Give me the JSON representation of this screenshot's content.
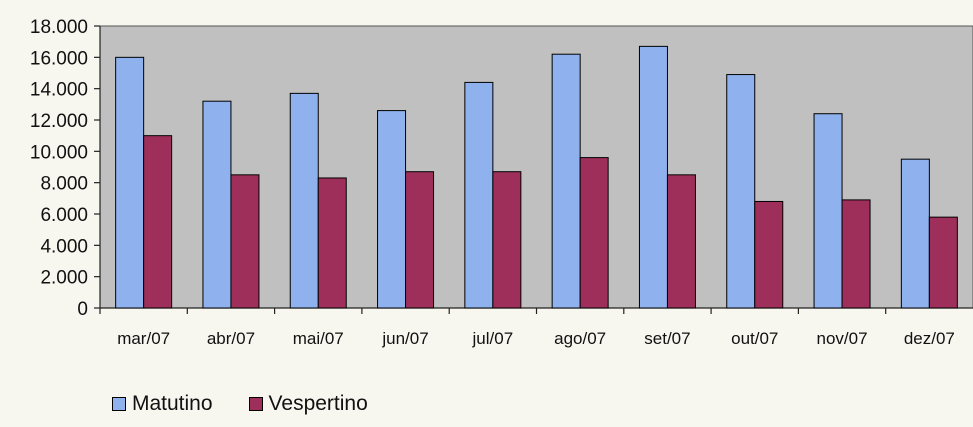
{
  "chart_data": {
    "type": "bar",
    "categories": [
      "mar/07",
      "abr/07",
      "mai/07",
      "jun/07",
      "jul/07",
      "ago/07",
      "set/07",
      "out/07",
      "nov/07",
      "dez/07"
    ],
    "series": [
      {
        "name": "Matutino",
        "color": "#8fb2ee",
        "values": [
          16000,
          13200,
          13700,
          12600,
          14400,
          16200,
          16700,
          14900,
          12400,
          9500
        ]
      },
      {
        "name": "Vespertino",
        "color": "#9e2f5a",
        "values": [
          11000,
          8500,
          8300,
          8700,
          8700,
          9600,
          8500,
          6800,
          6900,
          5800
        ]
      }
    ],
    "yticks": [
      "0",
      "2.000",
      "4.000",
      "6.000",
      "8.000",
      "10.000",
      "12.000",
      "14.000",
      "16.000",
      "18.000"
    ],
    "ylim": [
      0,
      18000
    ],
    "grid": false,
    "legend_position": "bottom-left",
    "plot_background": "#c0c0c0"
  }
}
